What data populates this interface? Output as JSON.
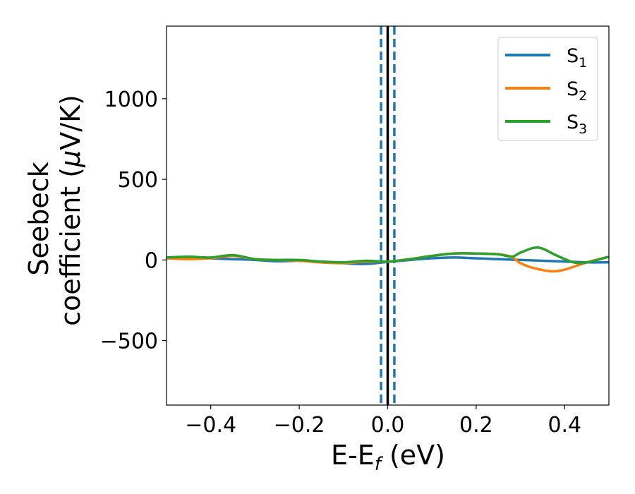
{
  "chart_data": {
    "type": "line",
    "xlabel": "E-E",
    "xlabel_sub": "f",
    "xlabel_unit": " (eV)",
    "ylabel_line1": "Seebeck",
    "ylabel_line2": "coefficient  (",
    "ylabel_mu": "μ",
    "ylabel_unit": "V/K)",
    "xlim": [
      -0.5,
      0.5
    ],
    "ylim": [
      -900,
      1450
    ],
    "x_ticks": [
      -0.4,
      -0.2,
      0.0,
      0.2,
      0.4
    ],
    "x_tick_labels": [
      "−0.4",
      "−0.2",
      "0.0",
      "0.2",
      "0.4"
    ],
    "y_ticks": [
      -500,
      0,
      500,
      1000
    ],
    "y_tick_labels": [
      "−500",
      "0",
      "500",
      "1000"
    ],
    "grid": false,
    "legend_position": "top-right",
    "vertical_lines": [
      {
        "x": -0.015,
        "style": "dashed",
        "color": "#1f77b4"
      },
      {
        "x": 0.0,
        "style": "solid",
        "color": "#000000"
      },
      {
        "x": 0.015,
        "style": "dashed",
        "color": "#1f77b4"
      }
    ],
    "series": [
      {
        "name": "S",
        "sub": "1",
        "color": "#1f77b4",
        "x": [
          -0.5,
          -0.45,
          -0.4,
          -0.35,
          -0.3,
          -0.25,
          -0.2,
          -0.15,
          -0.1,
          -0.05,
          0.0,
          0.05,
          0.1,
          0.15,
          0.2,
          0.25,
          0.3,
          0.35,
          0.4,
          0.45,
          0.5
        ],
        "y": [
          10,
          20,
          10,
          5,
          0,
          -8,
          -5,
          -15,
          -20,
          -25,
          -12,
          0,
          10,
          15,
          10,
          5,
          0,
          -5,
          -10,
          -15,
          -15
        ]
      },
      {
        "name": "S",
        "sub": "2",
        "color": "#ff7f0e",
        "x": [
          -0.5,
          -0.45,
          -0.4,
          -0.35,
          -0.3,
          -0.25,
          -0.2,
          -0.15,
          -0.1,
          -0.05,
          0.0,
          0.05,
          0.1,
          0.15,
          0.2,
          0.25,
          0.28,
          0.3,
          0.33,
          0.37,
          0.4,
          0.45,
          0.5
        ],
        "y": [
          10,
          5,
          10,
          25,
          5,
          0,
          -5,
          -15,
          -20,
          -10,
          -10,
          5,
          25,
          40,
          40,
          35,
          20,
          -20,
          -50,
          -70,
          -60,
          -15,
          20
        ]
      },
      {
        "name": "S",
        "sub": "3",
        "color": "#2ca02c",
        "x": [
          -0.5,
          -0.45,
          -0.4,
          -0.35,
          -0.3,
          -0.25,
          -0.2,
          -0.15,
          -0.1,
          -0.05,
          0.0,
          0.05,
          0.1,
          0.15,
          0.2,
          0.25,
          0.28,
          0.3,
          0.33,
          0.35,
          0.38,
          0.42,
          0.45,
          0.5
        ],
        "y": [
          15,
          20,
          15,
          30,
          5,
          0,
          0,
          -10,
          -15,
          -5,
          -10,
          5,
          25,
          40,
          40,
          35,
          20,
          45,
          75,
          70,
          30,
          -15,
          -15,
          20
        ]
      }
    ]
  }
}
